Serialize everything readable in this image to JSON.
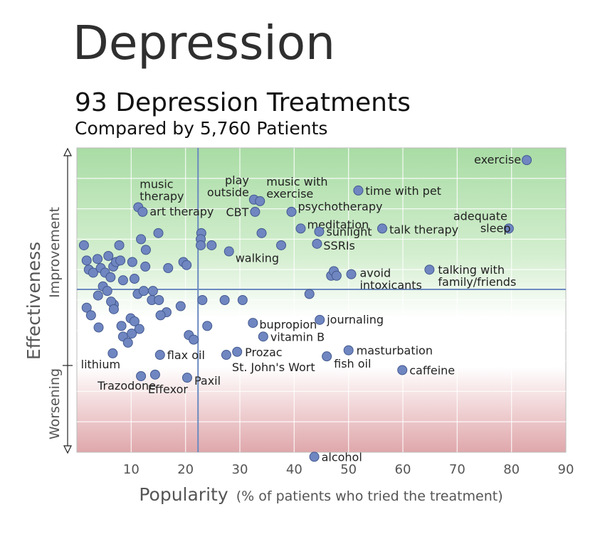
{
  "header": {
    "title": "Depression",
    "subtitle": "93 Depression Treatments",
    "subtitle2": "Compared by 5,760 Patients"
  },
  "chart_data": {
    "type": "scatter",
    "xlabel": "Popularity",
    "xlabel_note": "(% of patients who tried the treatment)",
    "ylabel": "Effectiveness",
    "y_region_labels": {
      "improvement": "Improvement",
      "worsening": "Worsening"
    },
    "xlim": [
      0,
      90
    ],
    "ylim": [
      -1,
      1
    ],
    "x_ticks": [
      10,
      20,
      30,
      40,
      50,
      60,
      70,
      80,
      90
    ],
    "reference_lines": {
      "x": 22.3,
      "y": 0.07
    },
    "points": [
      {
        "x": 82.8,
        "y": 0.92,
        "label": "exercise"
      },
      {
        "x": 51.8,
        "y": 0.72,
        "label": "time with pet"
      },
      {
        "x": 79.5,
        "y": 0.47,
        "label": "adequate sleep"
      },
      {
        "x": 56.2,
        "y": 0.47,
        "label": "talk therapy"
      },
      {
        "x": 64.9,
        "y": 0.2,
        "label": "talking with family/friends"
      },
      {
        "x": 50.5,
        "y": 0.17,
        "label": "avoid intoxicants"
      },
      {
        "x": 32.6,
        "y": 0.66,
        "label": "play outside"
      },
      {
        "x": 33.7,
        "y": 0.65,
        "label": "music with exercise"
      },
      {
        "x": 11.3,
        "y": 0.61,
        "label": "music therapy"
      },
      {
        "x": 12.1,
        "y": 0.58,
        "label": "art therapy"
      },
      {
        "x": 32.8,
        "y": 0.58,
        "label": "CBT"
      },
      {
        "x": 39.5,
        "y": 0.58,
        "label": "psychotherapy"
      },
      {
        "x": 41.2,
        "y": 0.47,
        "label": "meditation"
      },
      {
        "x": 44.6,
        "y": 0.45,
        "label": "sunlight"
      },
      {
        "x": 44.2,
        "y": 0.37,
        "label": "SSRIs"
      },
      {
        "x": 28.0,
        "y": 0.32,
        "label": "walking"
      },
      {
        "x": 44.7,
        "y": -0.13,
        "label": "journaling"
      },
      {
        "x": 32.4,
        "y": -0.15,
        "label": "bupropion"
      },
      {
        "x": 34.3,
        "y": -0.24,
        "label": "vitamin B"
      },
      {
        "x": 50.0,
        "y": -0.33,
        "label": "masturbation"
      },
      {
        "x": 29.5,
        "y": -0.34,
        "label": "Prozac"
      },
      {
        "x": 46.0,
        "y": -0.37,
        "label": "fish oil"
      },
      {
        "x": 27.5,
        "y": -0.36,
        "label": "St. John's Wort"
      },
      {
        "x": 15.3,
        "y": -0.36,
        "label": "flax oil"
      },
      {
        "x": 6.6,
        "y": -0.35,
        "label": "lithium"
      },
      {
        "x": 59.9,
        "y": -0.46,
        "label": "caffeine"
      },
      {
        "x": 11.8,
        "y": -0.5,
        "label": "Trazodone"
      },
      {
        "x": 14.4,
        "y": -0.49,
        "label": "Effexor"
      },
      {
        "x": 20.3,
        "y": -0.51,
        "label": "Paxil"
      },
      {
        "x": 43.7,
        "y": -1.03,
        "label": "alcohol"
      },
      {
        "x": 1.3,
        "y": 0.36
      },
      {
        "x": 1.8,
        "y": 0.26
      },
      {
        "x": 2.2,
        "y": 0.2
      },
      {
        "x": 3.0,
        "y": 0.18
      },
      {
        "x": 3.8,
        "y": 0.27
      },
      {
        "x": 4.4,
        "y": 0.21
      },
      {
        "x": 5.2,
        "y": 0.18
      },
      {
        "x": 5.8,
        "y": 0.29
      },
      {
        "x": 6.7,
        "y": 0.22
      },
      {
        "x": 7.2,
        "y": 0.25
      },
      {
        "x": 7.8,
        "y": 0.36
      },
      {
        "x": 8.0,
        "y": 0.26
      },
      {
        "x": 8.5,
        "y": 0.13
      },
      {
        "x": 4.8,
        "y": 0.09
      },
      {
        "x": 5.6,
        "y": 0.06
      },
      {
        "x": 6.2,
        "y": 0.15
      },
      {
        "x": 3.9,
        "y": 0.03
      },
      {
        "x": 6.8,
        "y": -0.03
      },
      {
        "x": 6.3,
        "y": -0.01
      },
      {
        "x": 10.2,
        "y": 0.25
      },
      {
        "x": 10.6,
        "y": 0.14
      },
      {
        "x": 11.2,
        "y": 0.04
      },
      {
        "x": 12.3,
        "y": 0.06
      },
      {
        "x": 12.7,
        "y": 0.33
      },
      {
        "x": 11.8,
        "y": 0.4
      },
      {
        "x": 12.6,
        "y": 0.22
      },
      {
        "x": 14.0,
        "y": 0.06
      },
      {
        "x": 15.0,
        "y": 0.44
      },
      {
        "x": 13.8,
        "y": 0.0
      },
      {
        "x": 15.1,
        "y": 0.0
      },
      {
        "x": 16.5,
        "y": -0.08
      },
      {
        "x": 15.4,
        "y": -0.1
      },
      {
        "x": 19.1,
        "y": -0.04
      },
      {
        "x": 19.6,
        "y": 0.25
      },
      {
        "x": 20.2,
        "y": 0.23
      },
      {
        "x": 16.8,
        "y": 0.21
      },
      {
        "x": 1.8,
        "y": -0.05
      },
      {
        "x": 2.6,
        "y": -0.1
      },
      {
        "x": 4.0,
        "y": -0.18
      },
      {
        "x": 6.8,
        "y": -0.06
      },
      {
        "x": 9.9,
        "y": -0.12
      },
      {
        "x": 10.6,
        "y": -0.14
      },
      {
        "x": 11.5,
        "y": -0.19
      },
      {
        "x": 10.1,
        "y": -0.22
      },
      {
        "x": 8.5,
        "y": -0.24
      },
      {
        "x": 9.4,
        "y": -0.28
      },
      {
        "x": 20.6,
        "y": -0.23
      },
      {
        "x": 21.5,
        "y": -0.26
      },
      {
        "x": 23.1,
        "y": 0.0
      },
      {
        "x": 24.0,
        "y": -0.17
      },
      {
        "x": 22.9,
        "y": 0.44
      },
      {
        "x": 22.8,
        "y": 0.4
      },
      {
        "x": 22.8,
        "y": 0.36
      },
      {
        "x": 24.8,
        "y": 0.36
      },
      {
        "x": 27.2,
        "y": 0.0
      },
      {
        "x": 30.5,
        "y": 0.0
      },
      {
        "x": 34.0,
        "y": 0.44
      },
      {
        "x": 37.6,
        "y": 0.36
      },
      {
        "x": 42.8,
        "y": 0.04
      },
      {
        "x": 46.8,
        "y": 0.16
      },
      {
        "x": 47.3,
        "y": 0.19
      },
      {
        "x": 47.8,
        "y": 0.16
      },
      {
        "x": 8.2,
        "y": -0.17
      }
    ]
  }
}
